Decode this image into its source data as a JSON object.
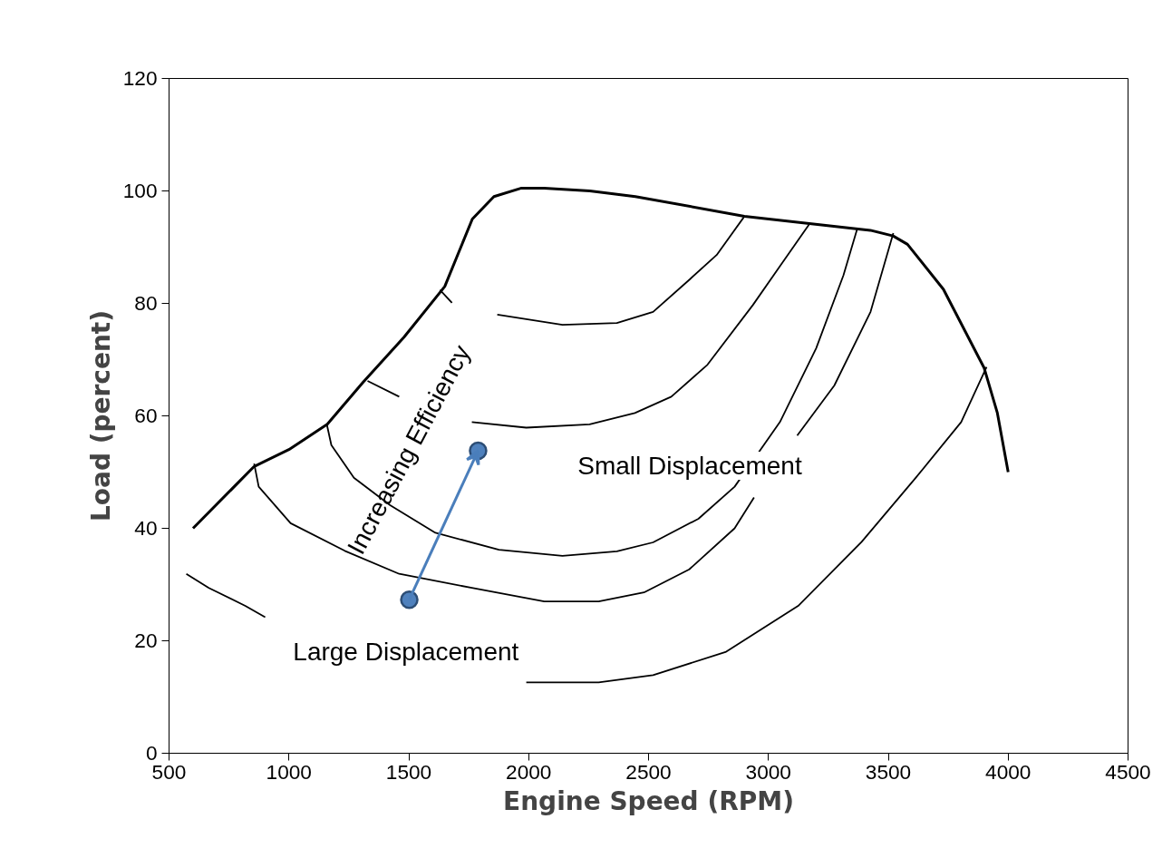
{
  "chart_data": {
    "type": "line",
    "xlabel": "Engine Speed (RPM)",
    "ylabel": "Load (percent)",
    "xlim": [
      500,
      4500
    ],
    "ylim": [
      0,
      120
    ],
    "xticks": [
      500,
      1000,
      1500,
      2000,
      2500,
      3000,
      3500,
      4000,
      4500
    ],
    "yticks": [
      0,
      20,
      40,
      60,
      80,
      100,
      120
    ],
    "grid": false,
    "line_style": "solid",
    "series": [
      {
        "color": "#000000",
        "x": [
          600,
          855,
          1000,
          1160,
          1310,
          1480,
          1650,
          1765,
          1855,
          1970,
          2065,
          2255,
          2445,
          2900,
          3425,
          3520,
          3580,
          3730,
          3900,
          3955,
          4000
        ],
        "values": [
          40,
          51,
          54,
          58.5,
          66,
          74,
          83,
          95,
          99,
          100.5,
          100.5,
          100,
          99,
          95.5,
          93,
          92,
          90.5,
          82.5,
          68.5,
          60.5,
          50
        ]
      },
      {
        "color": "#000000",
        "x": [
          1630,
          1680,
          1775,
          1869,
          2141,
          2368,
          2519,
          2670,
          2784,
          2897
        ],
        "values": [
          82.4,
          80.1,
          null,
          78,
          76.2,
          76.5,
          78.5,
          84.2,
          88.6,
          95.3
        ]
      },
      {
        "color": "#000000",
        "x": [
          1328,
          1460,
          1610,
          1763,
          1990,
          2254,
          2443,
          2595,
          2746,
          2935,
          3048,
          3169
        ],
        "values": [
          66.2,
          63.4,
          null,
          58.9,
          57.9,
          58.5,
          60.5,
          63.4,
          69.1,
          79.7,
          86.6,
          94.0
        ]
      },
      {
        "color": "#000000",
        "x": [
          1158,
          1177,
          1271,
          1422,
          1611,
          1876,
          2141,
          2368,
          2519,
          2708,
          2859,
          3048,
          3199,
          3313,
          3370
        ],
        "values": [
          58.5,
          54.8,
          49.0,
          44.1,
          39.2,
          36.2,
          35.1,
          35.9,
          37.5,
          41.7,
          47.4,
          58.9,
          72.0,
          85.0,
          93.2
        ]
      },
      {
        "color": "#000000",
        "x": [
          855,
          874,
          1007,
          1233,
          1460,
          1763,
          2065,
          2292,
          2481,
          2670,
          2859,
          2940,
          3048,
          3120,
          3275,
          3426,
          3521
        ],
        "values": [
          51.5,
          47.4,
          40.9,
          36.0,
          31.9,
          29.4,
          27.0,
          27.0,
          28.6,
          32.7,
          40.0,
          45.5,
          null,
          56.5,
          65.4,
          78.5,
          92.5
        ]
      },
      {
        "color": "#000000",
        "x": [
          572,
          666,
          818,
          901,
          1400,
          1990,
          2292,
          2519,
          2821,
          3124,
          3389,
          3615,
          3804,
          3910
        ],
        "values": [
          31.9,
          29.4,
          26.2,
          24.2,
          null,
          12.6,
          12.6,
          13.9,
          18.0,
          26.2,
          37.6,
          49.0,
          58.9,
          68.7
        ]
      },
      {
        "type": "scatter",
        "marker": "circle",
        "color": "#4f81bd",
        "x": [
          1502,
          1789
        ],
        "values": [
          27.3,
          53.8
        ]
      }
    ],
    "annotations": [
      "Increasing Efficiency",
      "Small Displacement",
      "Large Displacement"
    ]
  }
}
